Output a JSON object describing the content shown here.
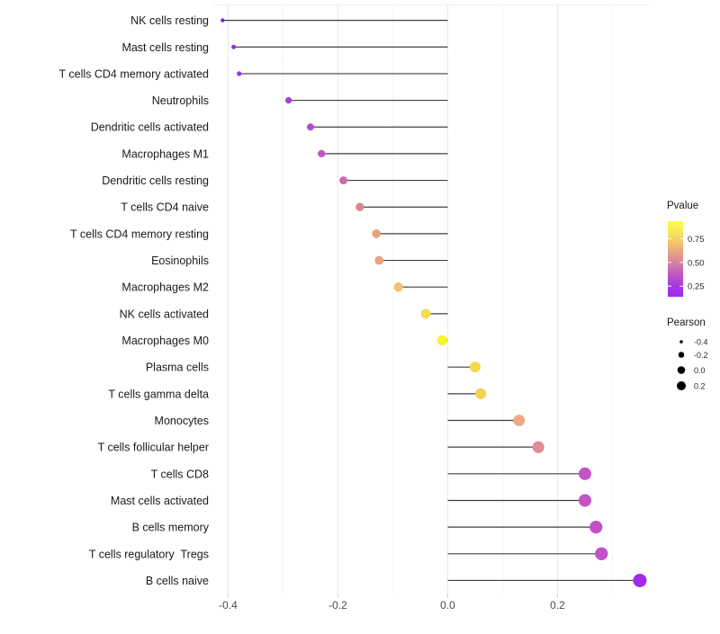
{
  "chart_data": {
    "type": "lollipop",
    "title": "",
    "xlabel": "",
    "ylabel": "",
    "grid": "vertical-major-and-minor",
    "background_color": "#ffffff",
    "stem_color": "#3f3f3f",
    "x_axis": {
      "ticks": [
        -0.4,
        -0.2,
        0.0,
        0.2
      ],
      "tick_labels": [
        "-0.4",
        "-0.2",
        "0.0",
        "0.2"
      ],
      "minor_gridlines": [
        -0.3,
        -0.1,
        0.1,
        0.3
      ],
      "range": [
        -0.427,
        0.368
      ]
    },
    "points": [
      {
        "label": "NK cells resting",
        "pearson": -0.41,
        "pvalue_est": 0.02,
        "color": "#7B1FD8"
      },
      {
        "label": "Mast cells resting",
        "pearson": -0.39,
        "pvalue_est": 0.06,
        "color": "#9128E9"
      },
      {
        "label": "T cells CD4 memory activated",
        "pearson": -0.38,
        "pvalue_est": 0.08,
        "color": "#9D34EC"
      },
      {
        "label": "Neutrophils",
        "pearson": -0.29,
        "pvalue_est": 0.12,
        "color": "#A440DF"
      },
      {
        "label": "Dendritic cells activated",
        "pearson": -0.25,
        "pvalue_est": 0.18,
        "color": "#B24BCE"
      },
      {
        "label": "Macrophages M1",
        "pearson": -0.23,
        "pvalue_est": 0.24,
        "color": "#BF58BE"
      },
      {
        "label": "Dendritic cells resting",
        "pearson": -0.19,
        "pvalue_est": 0.34,
        "color": "#CB6CAD"
      },
      {
        "label": "T cells CD4 naive",
        "pearson": -0.16,
        "pvalue_est": 0.45,
        "color": "#DB8794"
      },
      {
        "label": "T cells CD4 memory resting",
        "pearson": -0.13,
        "pvalue_est": 0.55,
        "color": "#EAA382"
      },
      {
        "label": "Eosinophils",
        "pearson": -0.125,
        "pvalue_est": 0.55,
        "color": "#EAA382"
      },
      {
        "label": "Macrophages M2",
        "pearson": -0.09,
        "pvalue_est": 0.68,
        "color": "#EFC46D"
      },
      {
        "label": "NK cells activated",
        "pearson": -0.04,
        "pvalue_est": 0.78,
        "color": "#F3DC53"
      },
      {
        "label": "Macrophages M0",
        "pearson": -0.01,
        "pvalue_est": 0.9,
        "color": "#F9F22D"
      },
      {
        "label": "Plasma cells",
        "pearson": 0.05,
        "pvalue_est": 0.77,
        "color": "#F4DA48"
      },
      {
        "label": "T cells gamma delta",
        "pearson": 0.06,
        "pvalue_est": 0.75,
        "color": "#F2D44F"
      },
      {
        "label": "Monocytes",
        "pearson": 0.13,
        "pvalue_est": 0.54,
        "color": "#EDA987"
      },
      {
        "label": "T cells follicular helper",
        "pearson": 0.165,
        "pvalue_est": 0.44,
        "color": "#E08D9B"
      },
      {
        "label": "T cells CD8",
        "pearson": 0.25,
        "pvalue_est": 0.25,
        "color": "#C454C6"
      },
      {
        "label": "Mast cells activated",
        "pearson": 0.25,
        "pvalue_est": 0.25,
        "color": "#C454C6"
      },
      {
        "label": "B cells memory",
        "pearson": 0.27,
        "pvalue_est": 0.23,
        "color": "#C250C9"
      },
      {
        "label": "T cells regulatory  Tregs",
        "pearson": 0.28,
        "pvalue_est": 0.23,
        "color": "#C250C9"
      },
      {
        "label": "B cells naive",
        "pearson": 0.35,
        "pvalue_est": 0.1,
        "color": "#A42AE8"
      }
    ],
    "legend_pvalue": {
      "title": "Pvalue",
      "tick_labels": [
        "0.75",
        "0.50",
        "0.25"
      ],
      "gradient_top_to_bottom": [
        "#FDFD45",
        "#F7E75A",
        "#F1C56E",
        "#E59E86",
        "#D07FA9",
        "#BC55C6",
        "#A637E2",
        "#9B2BF0"
      ]
    },
    "legend_pearson": {
      "title": "Pearson",
      "item_labels": [
        "-0.4",
        "-0.2",
        "0.0",
        "0.2"
      ],
      "item_values": [
        -0.4,
        -0.2,
        0.0,
        0.2
      ]
    }
  }
}
